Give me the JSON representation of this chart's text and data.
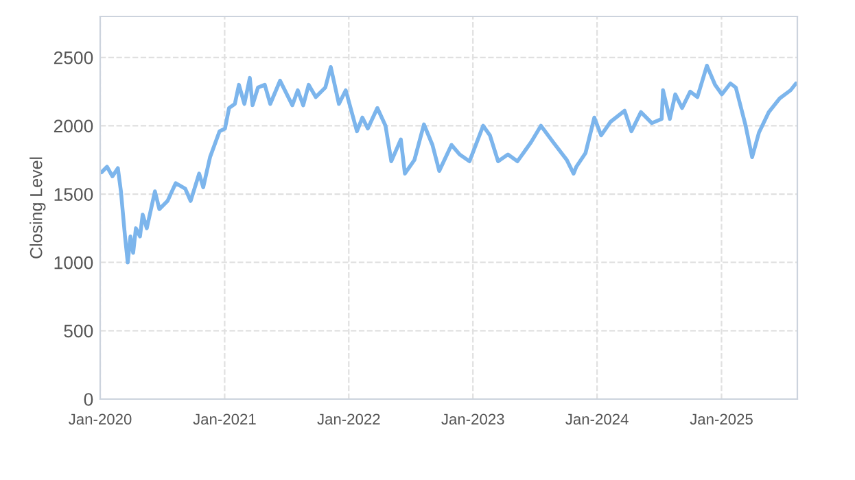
{
  "chart_data": {
    "type": "line",
    "ylabel": "Closing Level",
    "x": [
      "2020-01-05",
      "2020-01-21",
      "2020-02-06",
      "2020-02-22",
      "2020-03-02",
      "2020-03-14",
      "2020-03-22",
      "2020-03-30",
      "2020-04-07",
      "2020-04-15",
      "2020-04-27",
      "2020-05-05",
      "2020-05-17",
      "2020-06-10",
      "2020-06-23",
      "2020-07-17",
      "2020-08-10",
      "2020-09-07",
      "2020-09-23",
      "2020-10-18",
      "2020-10-30",
      "2020-11-19",
      "2020-12-17",
      "2021-01-02",
      "2021-01-14",
      "2021-01-31",
      "2021-02-12",
      "2021-02-28",
      "2021-03-16",
      "2021-03-24",
      "2021-04-09",
      "2021-04-29",
      "2021-05-15",
      "2021-06-13",
      "2021-07-19",
      "2021-08-04",
      "2021-08-20",
      "2021-09-05",
      "2021-09-26",
      "2021-10-24",
      "2021-11-09",
      "2021-12-03",
      "2021-12-23",
      "2022-01-25",
      "2022-02-10",
      "2022-02-26",
      "2022-03-26",
      "2022-04-19",
      "2022-05-06",
      "2022-06-03",
      "2022-06-15",
      "2022-07-13",
      "2022-08-10",
      "2022-09-04",
      "2022-09-24",
      "2022-10-30",
      "2022-11-23",
      "2022-12-22",
      "2023-01-31",
      "2023-02-20",
      "2023-03-16",
      "2023-04-14",
      "2023-05-12",
      "2023-06-21",
      "2023-07-20",
      "2023-08-25",
      "2023-10-04",
      "2023-10-24",
      "2023-11-01",
      "2023-11-28",
      "2023-12-24",
      "2024-01-13",
      "2024-02-10",
      "2024-03-22",
      "2024-04-11",
      "2024-05-09",
      "2024-06-10",
      "2024-07-09",
      "2024-07-13",
      "2024-08-02",
      "2024-08-18",
      "2024-09-07",
      "2024-10-01",
      "2024-10-22",
      "2024-11-19",
      "2024-12-13",
      "2025-01-02",
      "2025-01-27",
      "2025-02-12",
      "2025-03-12",
      "2025-04-01",
      "2025-04-21",
      "2025-05-20",
      "2025-06-21",
      "2025-07-23",
      "2025-08-08"
    ],
    "series": [
      {
        "color": "#7cb5ec",
        "values": [
          1660,
          1700,
          1630,
          1690,
          1520,
          1190,
          1000,
          1190,
          1070,
          1250,
          1190,
          1350,
          1250,
          1520,
          1390,
          1450,
          1580,
          1540,
          1450,
          1650,
          1550,
          1770,
          1960,
          1980,
          2130,
          2160,
          2300,
          2160,
          2350,
          2150,
          2280,
          2300,
          2160,
          2330,
          2150,
          2260,
          2150,
          2300,
          2210,
          2280,
          2430,
          2160,
          2260,
          1960,
          2060,
          1980,
          2130,
          2000,
          1740,
          1900,
          1650,
          1750,
          2010,
          1860,
          1670,
          1860,
          1790,
          1740,
          2000,
          1930,
          1740,
          1790,
          1740,
          1880,
          2000,
          1880,
          1750,
          1650,
          1700,
          1800,
          2060,
          1930,
          2030,
          2110,
          1960,
          2100,
          2020,
          2050,
          2260,
          2050,
          2230,
          2130,
          2250,
          2210,
          2440,
          2300,
          2230,
          2310,
          2280,
          2010,
          1770,
          1950,
          2100,
          2200,
          2260,
          2310
        ]
      }
    ],
    "xlim": [
      "2020-01-01",
      "2025-08-12"
    ],
    "xticks": [
      {
        "value": "2020-01-01",
        "label": "Jan-2020"
      },
      {
        "value": "2021-01-01",
        "label": "Jan-2021"
      },
      {
        "value": "2022-01-01",
        "label": "Jan-2022"
      },
      {
        "value": "2023-01-01",
        "label": "Jan-2023"
      },
      {
        "value": "2024-01-01",
        "label": "Jan-2024"
      },
      {
        "value": "2025-01-01",
        "label": "Jan-2025"
      }
    ],
    "ylim": [
      0,
      2800
    ],
    "yticks": [
      0,
      500,
      1000,
      1500,
      2000,
      2500
    ],
    "grid": true,
    "line_style": "solid",
    "marker": "none",
    "legend": false
  }
}
